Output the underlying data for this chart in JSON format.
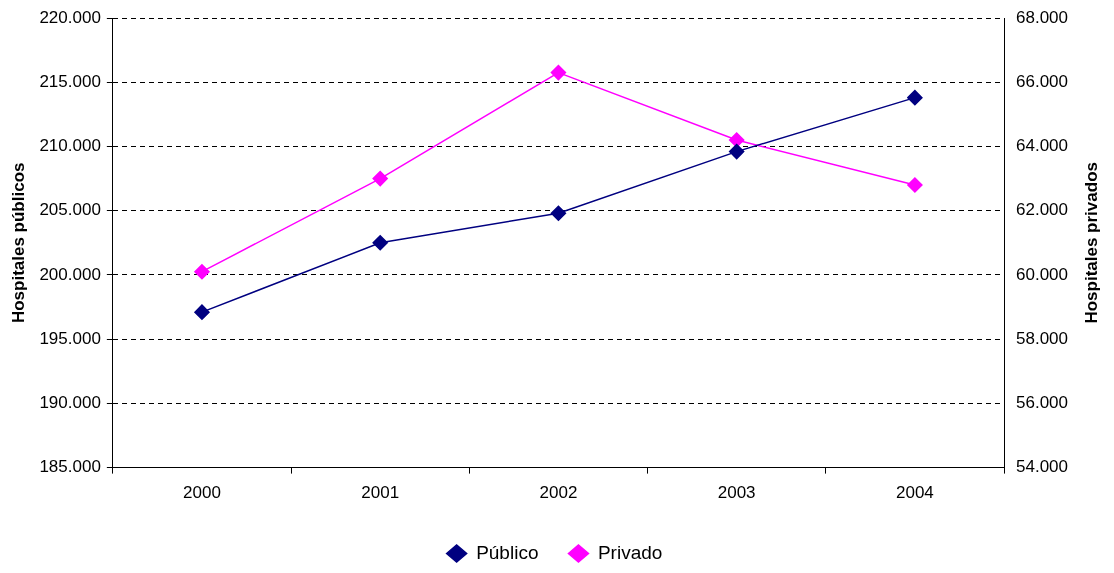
{
  "chart_data": {
    "type": "line",
    "ylabel": "Hospitales públicos",
    "y2label": "Hospitales privados",
    "categories": [
      "2000",
      "2001",
      "2002",
      "2003",
      "2004"
    ],
    "series": [
      {
        "name": "Público",
        "color": "#000080",
        "values": [
          197100,
          202500,
          204800,
          209600,
          213800
        ]
      },
      {
        "name": "Privado",
        "color": "#ff00ff",
        "values": [
          60100,
          63000,
          66300,
          64200,
          62800
        ],
        "axis": "y2"
      }
    ],
    "ylim": [
      185000,
      220000
    ],
    "yticks": [
      {
        "value": 185000,
        "label": "185.000"
      },
      {
        "value": 190000,
        "label": "190.000"
      },
      {
        "value": 195000,
        "label": "195.000"
      },
      {
        "value": 200000,
        "label": "200.000"
      },
      {
        "value": 205000,
        "label": "205.000"
      },
      {
        "value": 210000,
        "label": "210.000"
      },
      {
        "value": 215000,
        "label": "215.000"
      },
      {
        "value": 220000,
        "label": "220.000"
      }
    ],
    "y2lim": [
      54000,
      68000
    ],
    "y2ticks": [
      {
        "value": 54000,
        "label": "54.000"
      },
      {
        "value": 56000,
        "label": "56.000"
      },
      {
        "value": 58000,
        "label": "58.000"
      },
      {
        "value": 60000,
        "label": "60.000"
      },
      {
        "value": 62000,
        "label": "62.000"
      },
      {
        "value": 64000,
        "label": "64.000"
      },
      {
        "value": 66000,
        "label": "66.000"
      },
      {
        "value": 68000,
        "label": "68.000"
      }
    ],
    "grid": "y",
    "legend": "bottom",
    "marker": "diamond",
    "line_style": "solid"
  }
}
